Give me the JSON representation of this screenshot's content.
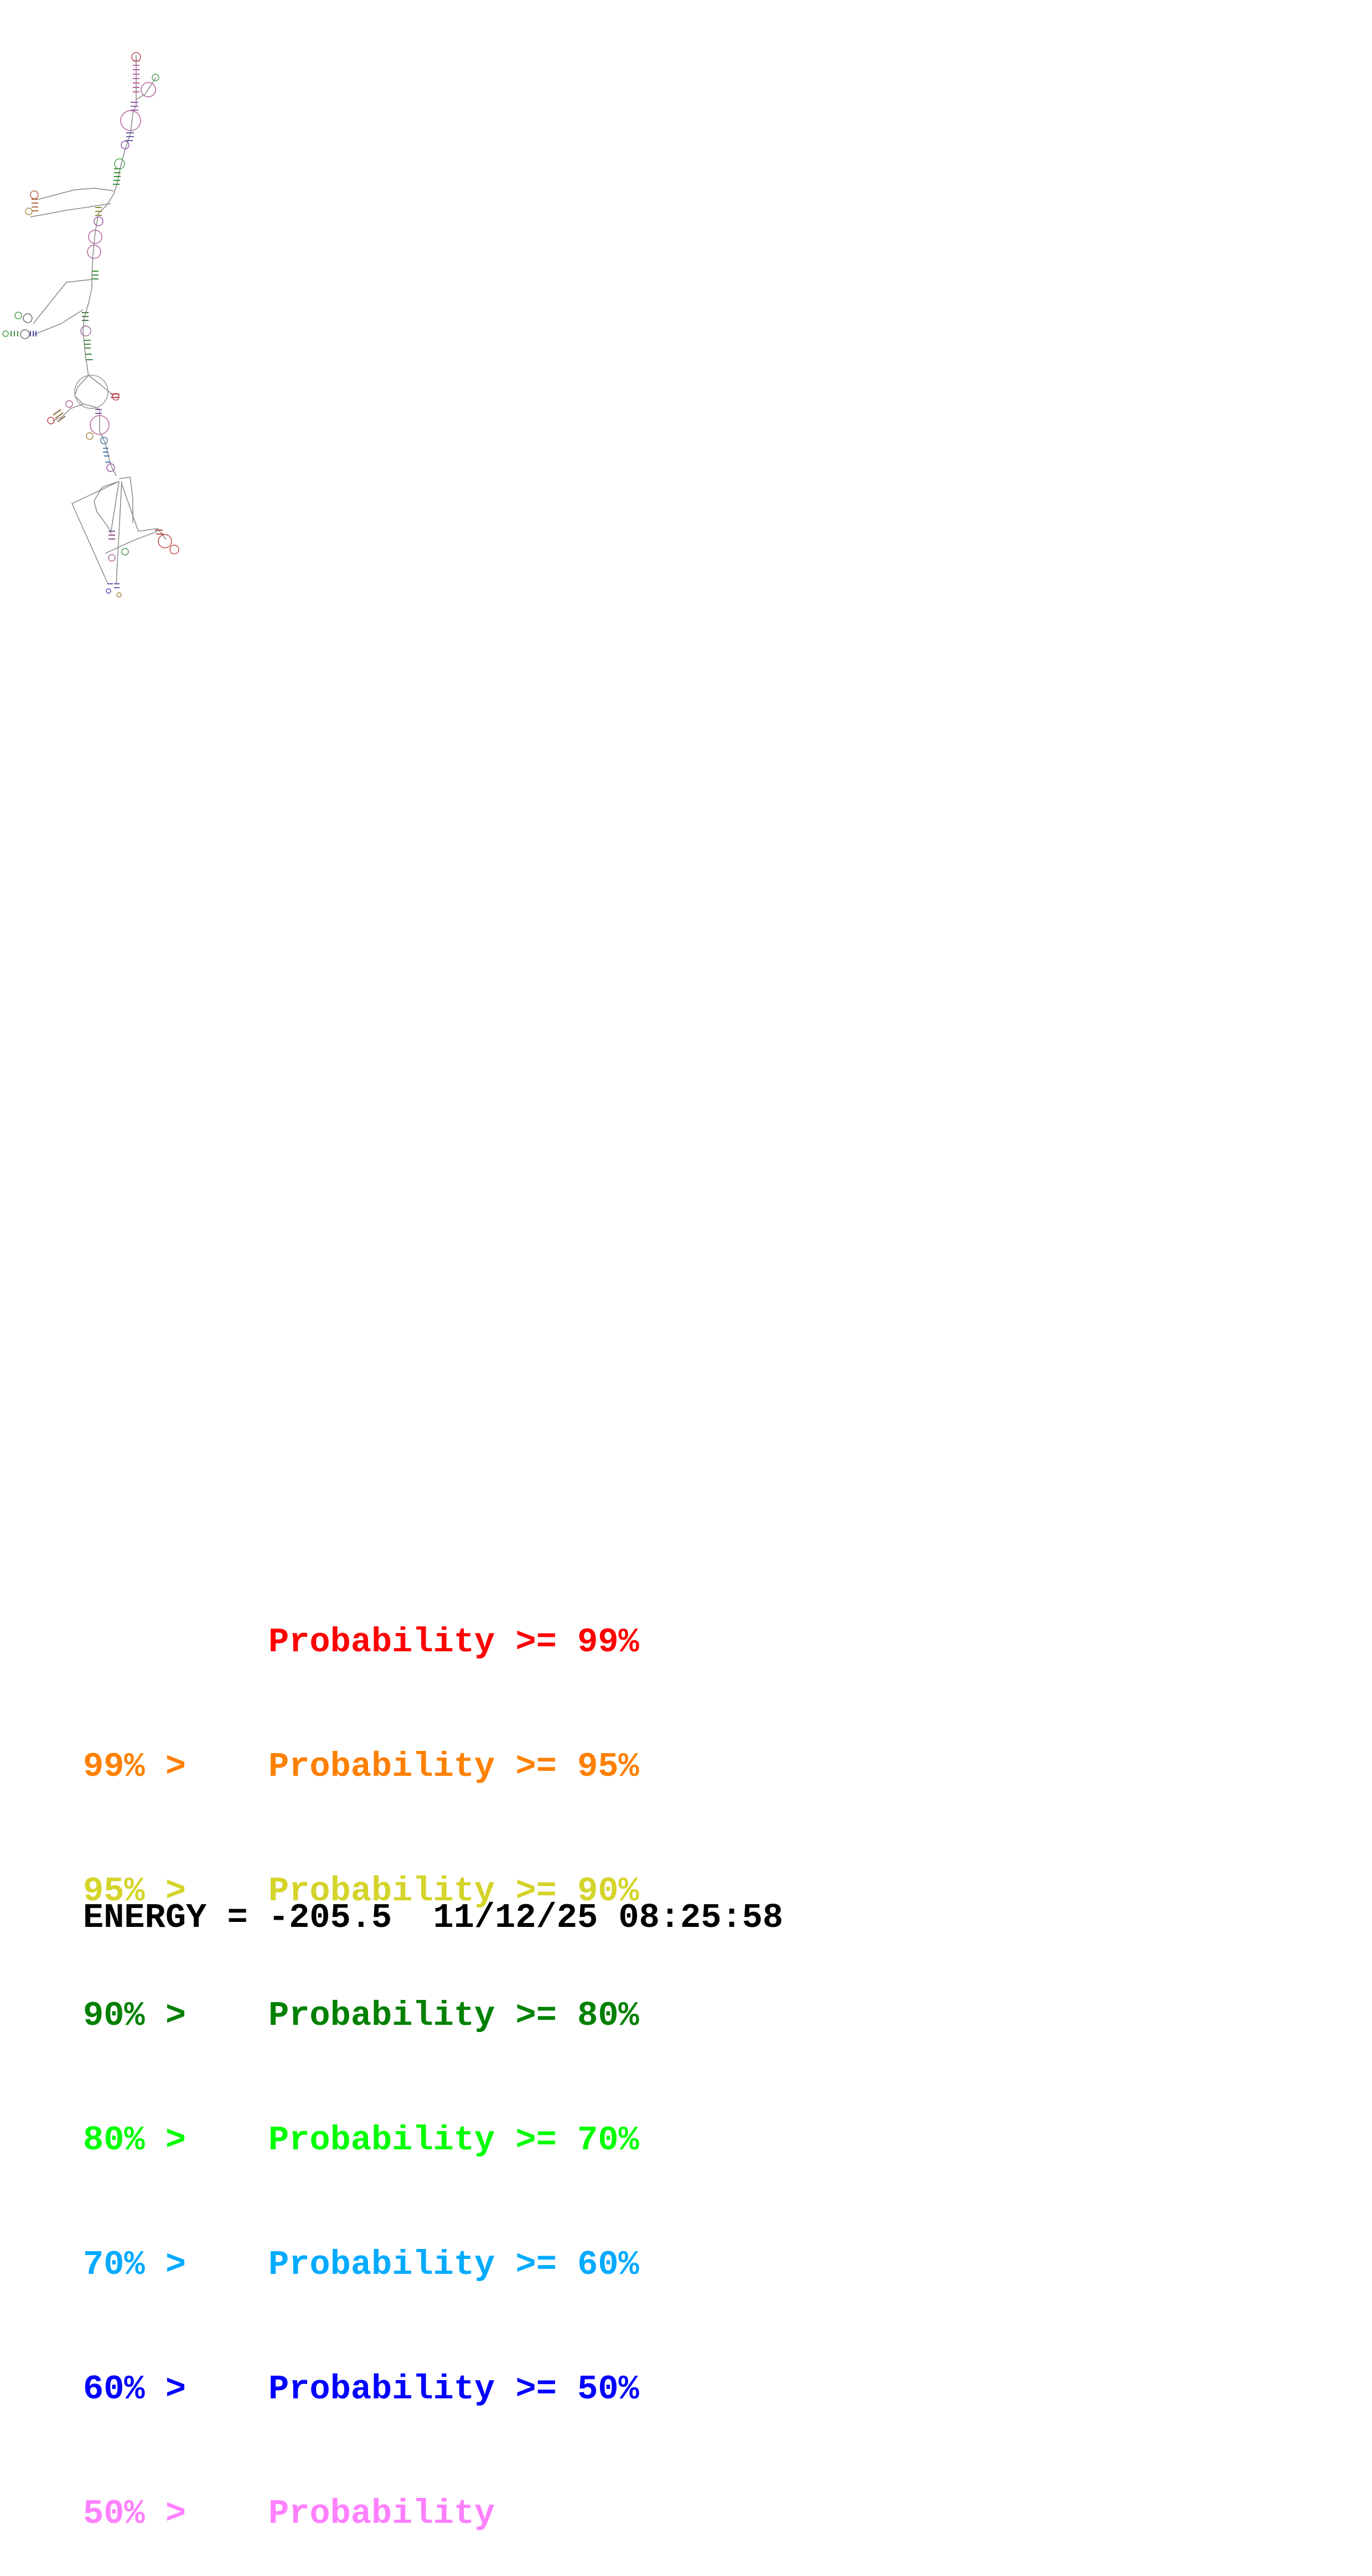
{
  "legend": [
    {
      "prefix": "",
      "label": "Probability",
      "suffix": ">= 99%",
      "color": "#ff0000"
    },
    {
      "prefix": "99% >",
      "label": "Probability",
      "suffix": ">= 95%",
      "color": "#ff8000"
    },
    {
      "prefix": "95% >",
      "label": "Probability",
      "suffix": ">= 90%",
      "color": "#d4d42b"
    },
    {
      "prefix": "90% >",
      "label": "Probability",
      "suffix": ">= 80%",
      "color": "#008000"
    },
    {
      "prefix": "80% >",
      "label": "Probability",
      "suffix": ">= 70%",
      "color": "#00ff00"
    },
    {
      "prefix": "70% >",
      "label": "Probability",
      "suffix": ">= 60%",
      "color": "#00aaff"
    },
    {
      "prefix": "60% >",
      "label": "Probability",
      "suffix": ">= 50%",
      "color": "#0000ff"
    },
    {
      "prefix": "50% >",
      "label": "Probability",
      "suffix": "",
      "color": "#ff80ff"
    }
  ],
  "energy": {
    "label": "ENERGY =",
    "value": "-205.5",
    "date": "11/12/25",
    "time": "08:25:58"
  }
}
